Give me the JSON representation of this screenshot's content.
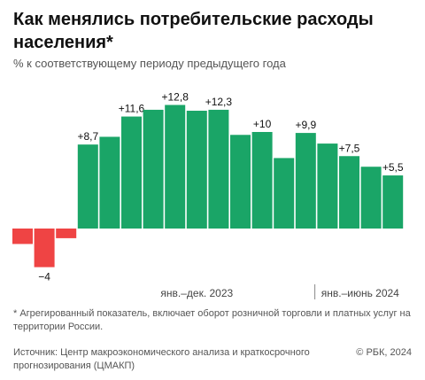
{
  "header": {
    "title": "Как менялись потребительские расходы населения*",
    "subtitle": "% к соответствующему периоду предыдущего года"
  },
  "chart_data": {
    "type": "bar",
    "values": [
      -1.6,
      -4,
      -1,
      8.7,
      9.5,
      11.6,
      12.3,
      12.8,
      12.2,
      12.3,
      9.7,
      10,
      7.3,
      9.9,
      8.8,
      7.5,
      6.4,
      5.5
    ],
    "data_labels": [
      "",
      "−4",
      "",
      "+8,7",
      "",
      "+11,6",
      "",
      "+12,8",
      "",
      "+12,3",
      "",
      "+10",
      "",
      "+9,9",
      "",
      "+7,5",
      "",
      "+5,5"
    ],
    "period_labels": [
      {
        "label": "янв.–дек. 2023",
        "start": 3,
        "end": 13
      },
      {
        "label": "янв.–июнь 2024",
        "start": 14,
        "end": 17
      }
    ],
    "ylim": [
      -4.5,
      14
    ],
    "grid": false,
    "colors": {
      "positive": "#1aa567",
      "negative": "#ef4444"
    }
  },
  "footer": {
    "footnote": "* Агрегированный показатель, включает оборот розничной торговли и платных услуг на территории России.",
    "source": "Источник: Центр макроэкономического анализа и краткосрочного прогнозирования (ЦМАКП)",
    "copyright": "© РБК, 2024"
  }
}
